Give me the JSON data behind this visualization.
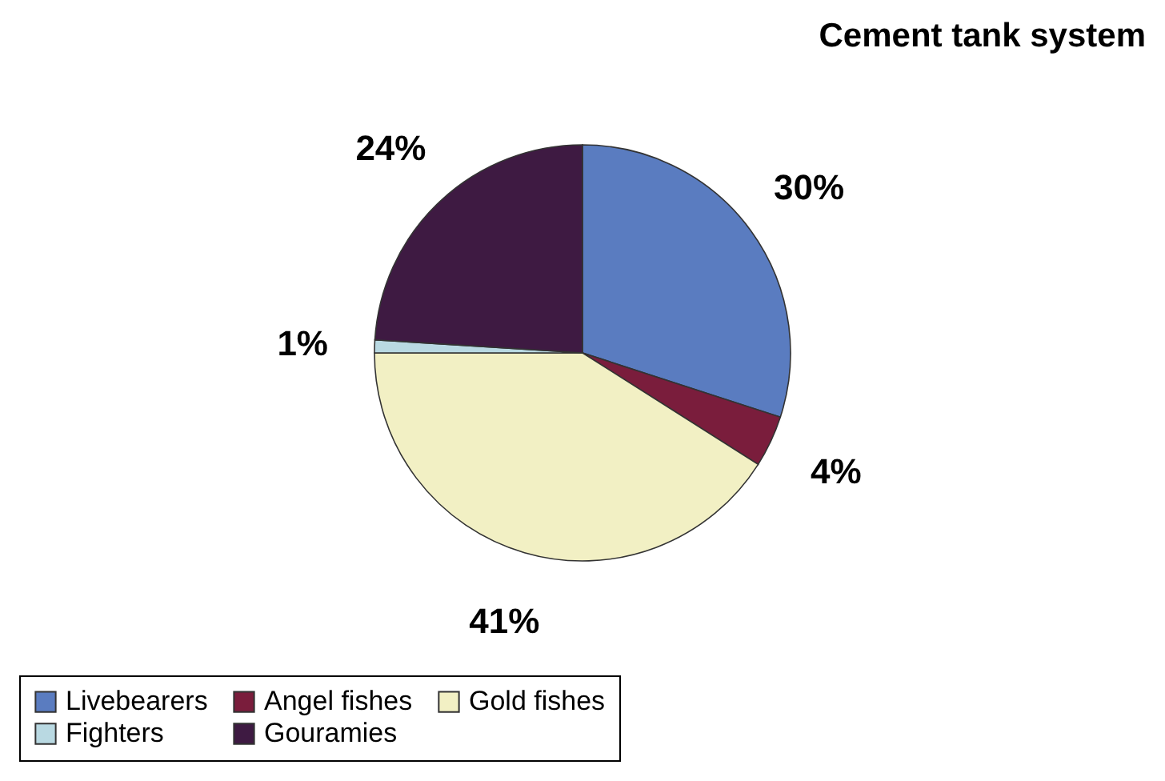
{
  "chart_data": {
    "type": "pie",
    "title": "Cement tank system",
    "categories": [
      "Livebearers",
      "Angel fishes",
      "Gold fishes",
      "Fighters",
      "Gouramies"
    ],
    "values": [
      30,
      4,
      41,
      1,
      24
    ],
    "value_labels": [
      "30%",
      "4%",
      "41%",
      "1%",
      "24%"
    ],
    "colors": [
      "#5a7cc0",
      "#7a1d3c",
      "#f2f0c4",
      "#b9d9e2",
      "#3e1a42"
    ],
    "legend": "bottom"
  }
}
